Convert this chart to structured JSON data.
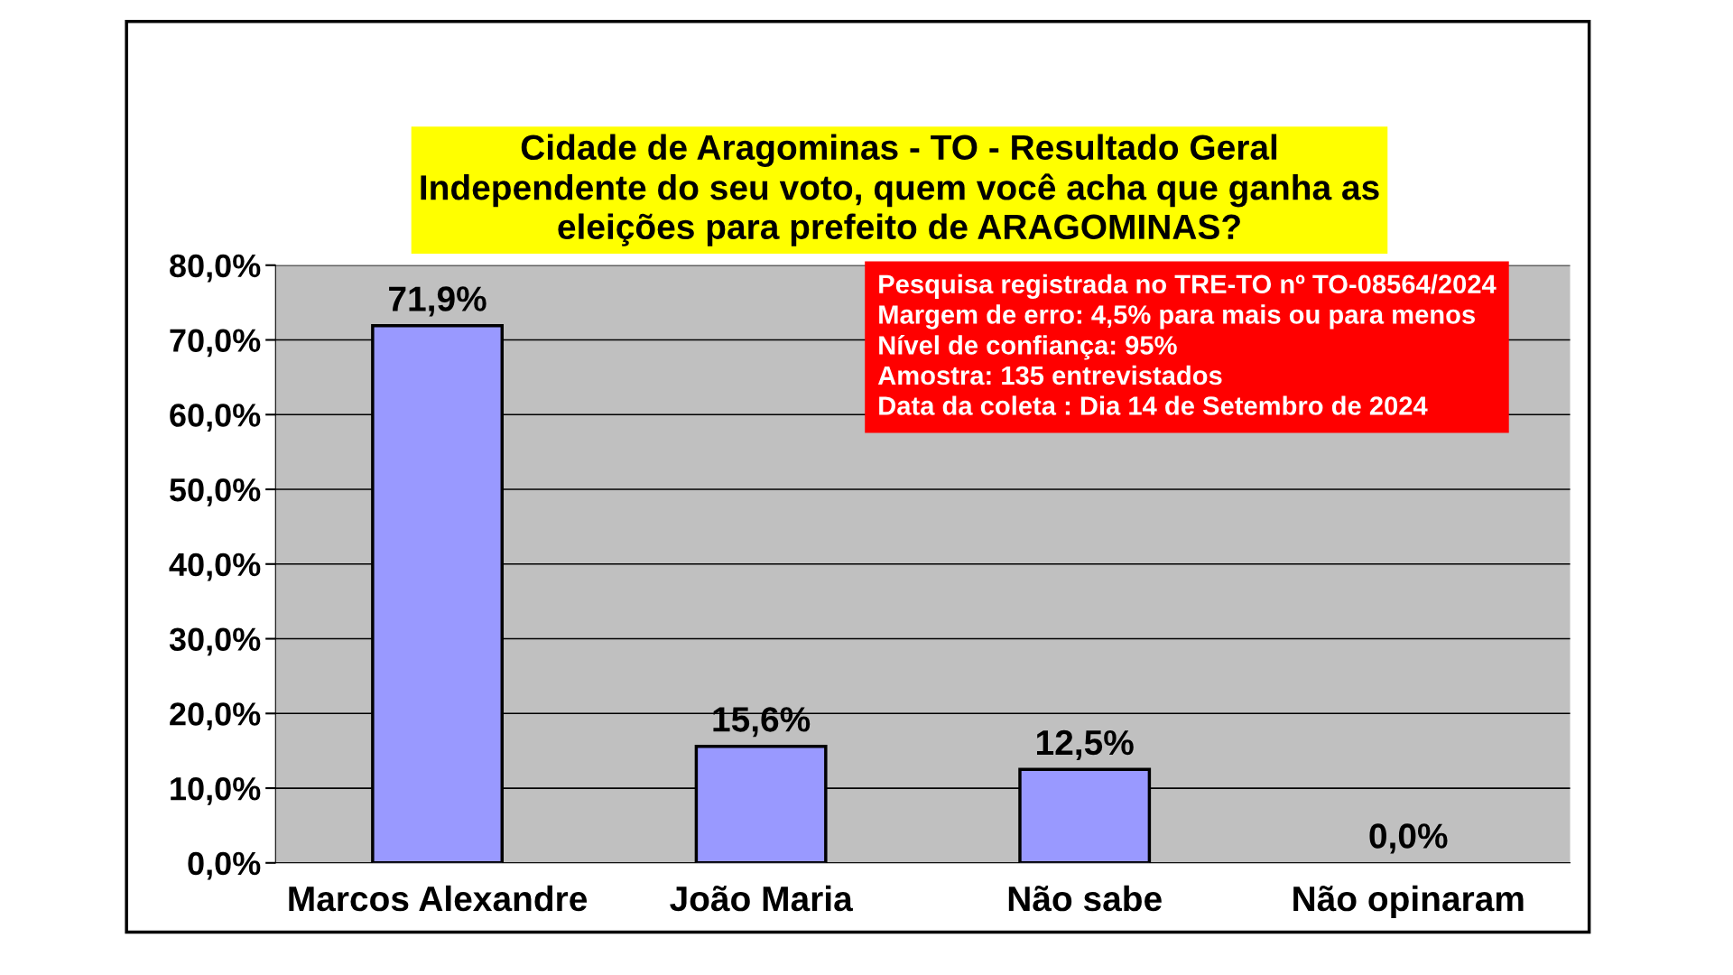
{
  "chart_data": {
    "type": "bar",
    "title": "Cidade de Aragominas - TO - Resultado Geral\nIndependente do seu voto, quem você acha que ganha as\neleições para prefeito de ARAGOMINAS?",
    "categories": [
      "Marcos Alexandre",
      "João Maria",
      "Não sabe",
      "Não opinaram"
    ],
    "values": [
      71.9,
      15.6,
      12.5,
      0.0
    ],
    "value_labels": [
      "71,9%",
      "15,6%",
      "12,5%",
      "0,0%"
    ],
    "color": "#9999ff",
    "ylim": [
      0,
      80
    ],
    "yticks": [
      {
        "value": 0,
        "label": "0,0%"
      },
      {
        "value": 10,
        "label": "10,0%"
      },
      {
        "value": 20,
        "label": "20,0%"
      },
      {
        "value": 30,
        "label": "30,0%"
      },
      {
        "value": 40,
        "label": "40,0%"
      },
      {
        "value": 50,
        "label": "50,0%"
      },
      {
        "value": 60,
        "label": "60,0%"
      },
      {
        "value": 70,
        "label": "70,0%"
      },
      {
        "value": 80,
        "label": "80,0%"
      }
    ],
    "grid": "y",
    "annotations": [
      "Pesquisa registrada no TRE-TO nº TO-08564/2024\nMargem de erro: 4,5% para mais ou para menos\nNível de confiança: 95%\nAmostra: 135 entrevistados\nData da coleta : Dia 14 de Setembro de 2024"
    ]
  }
}
